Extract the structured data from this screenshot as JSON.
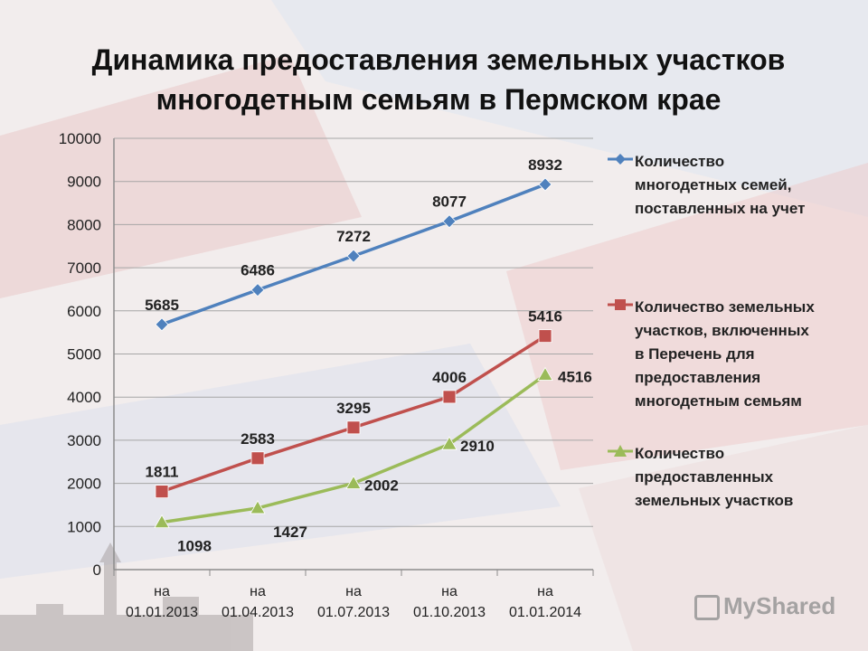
{
  "title_lines": [
    "Динамика предоставления земельных участков",
    "многодетным семьям в Пермском крае"
  ],
  "watermark": "MyShared",
  "chart_data": {
    "type": "line",
    "categories": [
      [
        "на",
        "01.01.2013"
      ],
      [
        "на",
        "01.04.2013"
      ],
      [
        "на",
        "01.07.2013"
      ],
      [
        "на",
        "01.10.2013"
      ],
      [
        "на",
        "01.01.2014"
      ]
    ],
    "ylim": [
      0,
      10000
    ],
    "yticks": [
      0,
      1000,
      2000,
      3000,
      4000,
      5000,
      6000,
      7000,
      8000,
      9000,
      10000
    ],
    "grid": true,
    "legend_position": "right",
    "series": [
      {
        "name": "Количество\nмногодетных семей,\nпоставленных на учет",
        "values": [
          5685,
          6486,
          7272,
          8077,
          8932
        ],
        "color": "#4f81bd",
        "marker": "diamond",
        "label_position": "above"
      },
      {
        "name": "Количество земельных\nучастков, включенных\nв Перечень для\nпредоставления\nмногодетным семьям",
        "values": [
          1811,
          2583,
          3295,
          4006,
          5416
        ],
        "color": "#c0504d",
        "marker": "square",
        "label_position": "above"
      },
      {
        "name": "Количество\nпредоставленных\nземельных участков",
        "values": [
          1098,
          1427,
          2002,
          2910,
          4516
        ],
        "color": "#9bbb59",
        "marker": "triangle",
        "label_position": "right-below"
      }
    ]
  }
}
